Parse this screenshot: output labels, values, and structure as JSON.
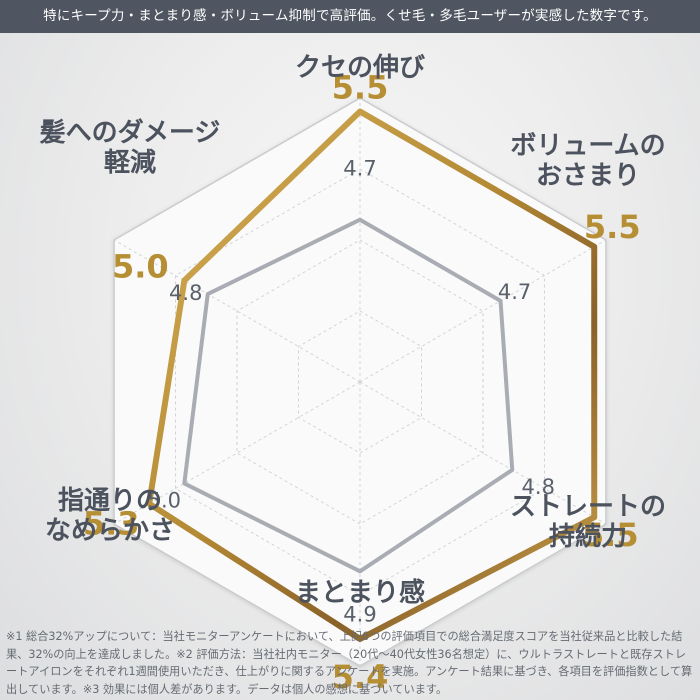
{
  "banner": {
    "text": "特にキープ力・まとまり感・ボリューム抑制で高評価。くせ毛・多毛ユーザーが実感した数字です。"
  },
  "chart_data": {
    "type": "radar",
    "axes": [
      {
        "line1": "クセの伸び",
        "line2": ""
      },
      {
        "line1": "ボリュームの",
        "line2": "おさまり"
      },
      {
        "line1": "ストレートの",
        "line2": "持続力"
      },
      {
        "line1": "まとまり感",
        "line2": ""
      },
      {
        "line1": "指通りの",
        "line2": "なめらかさ"
      },
      {
        "line1": "髪へのダメージ",
        "line2": "軽減"
      }
    ],
    "rlim": [
      3.5,
      5.6
    ],
    "series": [
      {
        "values": [
          5.5,
          5.5,
          5.5,
          5.4,
          5.3,
          5.0
        ],
        "color": "#c39a3c"
      },
      {
        "values": [
          4.7,
          4.7,
          4.8,
          4.9,
          5.0,
          4.8
        ],
        "color": "#a9adb3"
      }
    ],
    "label_colors": [
      "#b68e33",
      "#5a616b"
    ],
    "accent_color": "#4c535e"
  },
  "footnote": {
    "text": "※1 総合32%アップについて：当社モニターアンケートにおいて、上記6つの評価項目での総合満足度スコアを当社従来品と比較した結果、32%の向上を達成しました。※2 評価方法：当社社内モニター（20代〜40代女性36名想定）に、ウルトラストレートと既存ストレートアイロンをそれぞれ1週間使用いただき、仕上がりに関するアンケートを実施。アンケート結果に基づき、各項目を評価指数として算出しています。※3 効果には個人差があります。データは個人の感想に基づいています。"
  }
}
